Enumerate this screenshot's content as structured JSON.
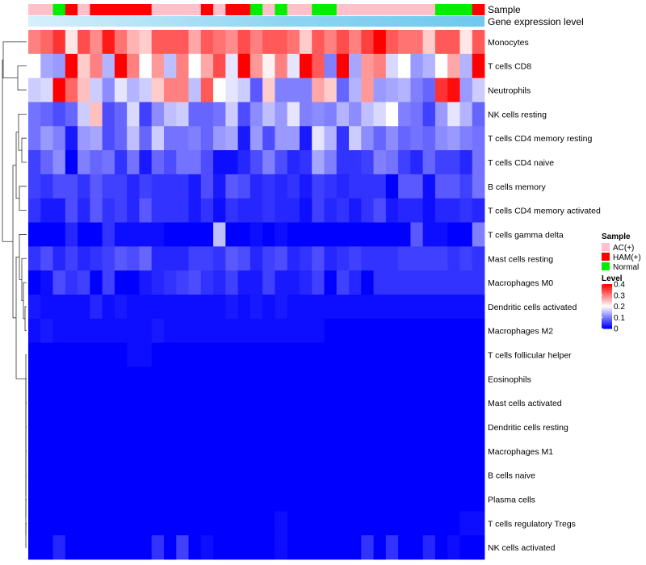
{
  "chart_data": {
    "type": "heatmap",
    "title": "",
    "annotation_tracks": [
      {
        "name": "Sample",
        "label": "Sample"
      },
      {
        "name": "Gene expression level",
        "label": "Gene expression level"
      }
    ],
    "sample_groups": [
      "AC",
      "AC",
      "N",
      "H",
      "AC",
      "H",
      "H",
      "H",
      "H",
      "H",
      "AC",
      "AC",
      "AC",
      "AC",
      "H",
      "AC",
      "H",
      "H",
      "N",
      "AC",
      "N",
      "AC",
      "AC",
      "N",
      "N",
      "AC",
      "AC",
      "AC",
      "AC",
      "AC",
      "AC",
      "AC",
      "AC",
      "N",
      "N",
      "N",
      "H"
    ],
    "rows": [
      "Monocytes",
      "T cells CD8",
      "Neutrophils",
      "NK cells resting",
      "T cells CD4 memory resting",
      "T cells CD4 naive",
      "B cells memory",
      "T cells CD4 memory activated",
      "T cells gamma delta",
      "Mast cells resting",
      "Macrophages M0",
      "Dendritic cells activated",
      "Macrophages M2",
      "T cells follicular helper",
      "Eosinophils",
      "Mast cells activated",
      "Dendritic cells resting",
      "Macrophages M1",
      "B cells naive",
      "Plasma cells",
      "T cells regulatory  Tregs",
      "NK cells activated"
    ],
    "values": [
      [
        0.3,
        0.32,
        0.36,
        0.22,
        0.34,
        0.29,
        0.38,
        0.31,
        0.26,
        0.24,
        0.33,
        0.33,
        0.33,
        0.27,
        0.33,
        0.31,
        0.29,
        0.34,
        0.3,
        0.33,
        0.33,
        0.31,
        0.24,
        0.33,
        0.3,
        0.34,
        0.3,
        0.35,
        0.41,
        0.33,
        0.31,
        0.31,
        0.24,
        0.33,
        0.33,
        0.22,
        0.33
      ],
      [
        0.2,
        0.13,
        0.12,
        0.4,
        0.24,
        0.3,
        0.14,
        0.4,
        0.3,
        0.2,
        0.28,
        0.15,
        0.3,
        0.2,
        0.27,
        0.34,
        0.18,
        0.41,
        0.28,
        0.21,
        0.3,
        0.18,
        0.41,
        0.33,
        0.1,
        0.41,
        0.13,
        0.28,
        0.3,
        0.17,
        0.2,
        0.12,
        0.14,
        0.2,
        0.27,
        0.14,
        0.4
      ],
      [
        0.16,
        0.17,
        0.4,
        0.32,
        0.25,
        0.16,
        0.11,
        0.18,
        0.14,
        0.16,
        0.24,
        0.3,
        0.3,
        0.15,
        0.33,
        0.2,
        0.18,
        0.16,
        0.07,
        0.24,
        0.1,
        0.1,
        0.1,
        0.27,
        0.24,
        0.08,
        0.14,
        0.28,
        0.12,
        0.13,
        0.14,
        0.1,
        0.08,
        0.36,
        0.39,
        0.12,
        0.16
      ],
      [
        0.09,
        0.08,
        0.06,
        0.08,
        0.16,
        0.25,
        0.06,
        0.08,
        0.17,
        0.05,
        0.11,
        0.15,
        0.16,
        0.08,
        0.08,
        0.09,
        0.16,
        0.06,
        0.11,
        0.15,
        0.12,
        0.18,
        0.1,
        0.11,
        0.1,
        0.14,
        0.11,
        0.15,
        0.17,
        0.2,
        0.1,
        0.09,
        0.05,
        0.12,
        0.18,
        0.14,
        0.08
      ],
      [
        0.09,
        0.12,
        0.1,
        0.02,
        0.12,
        0.13,
        0.06,
        0.08,
        0.15,
        0.08,
        0.16,
        0.09,
        0.09,
        0.1,
        0.08,
        0.12,
        0.13,
        0.02,
        0.12,
        0.06,
        0.12,
        0.12,
        0.02,
        0.18,
        0.14,
        0.04,
        0.16,
        0.11,
        0.08,
        0.11,
        0.08,
        0.09,
        0.08,
        0.11,
        0.12,
        0.1,
        0.09
      ],
      [
        0.05,
        0.08,
        0.11,
        0.0,
        0.1,
        0.08,
        0.09,
        0.04,
        0.09,
        0.02,
        0.08,
        0.06,
        0.09,
        0.09,
        0.06,
        0.01,
        0.01,
        0.03,
        0.06,
        0.1,
        0.06,
        0.03,
        0.04,
        0.13,
        0.1,
        0.04,
        0.04,
        0.05,
        0.1,
        0.09,
        0.05,
        0.03,
        0.08,
        0.05,
        0.05,
        0.03,
        0.09
      ],
      [
        0.05,
        0.04,
        0.06,
        0.06,
        0.04,
        0.07,
        0.05,
        0.05,
        0.03,
        0.05,
        0.04,
        0.04,
        0.04,
        0.02,
        0.06,
        0.02,
        0.07,
        0.06,
        0.03,
        0.04,
        0.03,
        0.04,
        0.02,
        0.05,
        0.04,
        0.03,
        0.04,
        0.04,
        0.04,
        0.0,
        0.07,
        0.07,
        0.01,
        0.07,
        0.07,
        0.05,
        0.09
      ],
      [
        0.04,
        0.02,
        0.02,
        0.06,
        0.03,
        0.07,
        0.04,
        0.05,
        0.03,
        0.07,
        0.04,
        0.04,
        0.04,
        0.02,
        0.04,
        0.01,
        0.04,
        0.03,
        0.03,
        0.04,
        0.03,
        0.03,
        0.01,
        0.05,
        0.03,
        0.04,
        0.02,
        0.04,
        0.06,
        0.02,
        0.03,
        0.03,
        0.01,
        0.03,
        0.03,
        0.04,
        0.03
      ],
      [
        0.0,
        0.0,
        0.0,
        0.03,
        0.0,
        0.0,
        0.04,
        0.01,
        0.01,
        0.01,
        0.01,
        0.0,
        0.0,
        0.0,
        0.0,
        0.15,
        0.0,
        0.0,
        0.01,
        0.0,
        0.01,
        0.0,
        0.0,
        0.0,
        0.0,
        0.0,
        0.0,
        0.0,
        0.0,
        0.0,
        0.0,
        0.07,
        0.01,
        0.01,
        0.0,
        0.0,
        0.1
      ],
      [
        0.04,
        0.06,
        0.03,
        0.05,
        0.03,
        0.04,
        0.05,
        0.07,
        0.06,
        0.08,
        0.03,
        0.03,
        0.03,
        0.05,
        0.05,
        0.04,
        0.07,
        0.06,
        0.03,
        0.05,
        0.06,
        0.03,
        0.04,
        0.06,
        0.03,
        0.04,
        0.05,
        0.04,
        0.04,
        0.04,
        0.05,
        0.05,
        0.05,
        0.05,
        0.04,
        0.05,
        0.04
      ],
      [
        0.0,
        0.01,
        0.06,
        0.04,
        0.05,
        0.0,
        0.05,
        0.0,
        0.0,
        0.02,
        0.03,
        0.04,
        0.05,
        0.06,
        0.04,
        0.03,
        0.05,
        0.02,
        0.02,
        0.05,
        0.02,
        0.02,
        0.03,
        0.05,
        0.0,
        0.05,
        0.03,
        0.0,
        0.04,
        0.04,
        0.04,
        0.04,
        0.04,
        0.04,
        0.04,
        0.04,
        0.04
      ],
      [
        0.02,
        0.01,
        0.01,
        0.01,
        0.01,
        0.03,
        0.01,
        0.02,
        0.01,
        0.01,
        0.01,
        0.01,
        0.01,
        0.01,
        0.01,
        0.01,
        0.02,
        0.01,
        0.02,
        0.01,
        0.02,
        0.01,
        0.01,
        0.01,
        0.01,
        0.01,
        0.01,
        0.01,
        0.01,
        0.01,
        0.01,
        0.01,
        0.01,
        0.01,
        0.01,
        0.01,
        0.01
      ],
      [
        0.01,
        0.02,
        0.01,
        0.01,
        0.01,
        0.01,
        0.01,
        0.01,
        0.01,
        0.01,
        0.02,
        0.01,
        0.01,
        0.01,
        0.01,
        0.01,
        0.01,
        0.01,
        0.01,
        0.01,
        0.01,
        0.01,
        0.01,
        0.01,
        0.0,
        0.0,
        0.0,
        0.0,
        0.0,
        0.0,
        0.0,
        0.0,
        0.0,
        0.0,
        0.0,
        0.0,
        0.0
      ],
      [
        0.0,
        0.0,
        0.0,
        0.0,
        0.0,
        0.0,
        0.0,
        0.0,
        0.01,
        0.01,
        0.0,
        0.0,
        0.0,
        0.0,
        0.0,
        0.0,
        0.0,
        0.0,
        0.0,
        0.0,
        0.0,
        0.0,
        0.0,
        0.0,
        0.0,
        0.0,
        0.0,
        0.0,
        0.0,
        0.0,
        0.0,
        0.0,
        0.0,
        0.0,
        0.0,
        0.0,
        0.0
      ],
      [
        0.0,
        0.0,
        0.0,
        0.0,
        0.0,
        0.0,
        0.0,
        0.0,
        0.0,
        0.0,
        0.0,
        0.0,
        0.0,
        0.0,
        0.0,
        0.0,
        0.0,
        0.0,
        0.0,
        0.0,
        0.0,
        0.0,
        0.0,
        0.0,
        0.0,
        0.0,
        0.0,
        0.0,
        0.0,
        0.0,
        0.0,
        0.0,
        0.0,
        0.0,
        0.0,
        0.0,
        0.0
      ],
      [
        0.0,
        0.0,
        0.0,
        0.0,
        0.0,
        0.0,
        0.0,
        0.0,
        0.0,
        0.0,
        0.0,
        0.0,
        0.0,
        0.0,
        0.0,
        0.0,
        0.0,
        0.0,
        0.0,
        0.0,
        0.0,
        0.0,
        0.0,
        0.0,
        0.0,
        0.0,
        0.0,
        0.0,
        0.0,
        0.0,
        0.0,
        0.0,
        0.0,
        0.0,
        0.0,
        0.0,
        0.0
      ],
      [
        0.0,
        0.0,
        0.0,
        0.0,
        0.0,
        0.0,
        0.0,
        0.0,
        0.0,
        0.0,
        0.0,
        0.0,
        0.0,
        0.0,
        0.0,
        0.0,
        0.0,
        0.0,
        0.0,
        0.0,
        0.0,
        0.0,
        0.0,
        0.0,
        0.0,
        0.0,
        0.0,
        0.0,
        0.0,
        0.0,
        0.0,
        0.0,
        0.0,
        0.0,
        0.0,
        0.0,
        0.0
      ],
      [
        0.0,
        0.0,
        0.0,
        0.0,
        0.0,
        0.0,
        0.0,
        0.0,
        0.0,
        0.0,
        0.0,
        0.0,
        0.0,
        0.0,
        0.0,
        0.0,
        0.0,
        0.0,
        0.0,
        0.0,
        0.0,
        0.0,
        0.0,
        0.0,
        0.0,
        0.0,
        0.0,
        0.0,
        0.0,
        0.0,
        0.0,
        0.0,
        0.0,
        0.0,
        0.0,
        0.0,
        0.0
      ],
      [
        0.0,
        0.0,
        0.0,
        0.0,
        0.0,
        0.0,
        0.0,
        0.0,
        0.0,
        0.0,
        0.0,
        0.0,
        0.0,
        0.0,
        0.0,
        0.0,
        0.0,
        0.0,
        0.0,
        0.0,
        0.0,
        0.0,
        0.0,
        0.0,
        0.0,
        0.0,
        0.0,
        0.0,
        0.0,
        0.0,
        0.0,
        0.0,
        0.0,
        0.0,
        0.0,
        0.0,
        0.0
      ],
      [
        0.0,
        0.0,
        0.0,
        0.0,
        0.0,
        0.0,
        0.0,
        0.0,
        0.0,
        0.0,
        0.0,
        0.0,
        0.0,
        0.0,
        0.0,
        0.0,
        0.0,
        0.0,
        0.0,
        0.0,
        0.0,
        0.0,
        0.0,
        0.0,
        0.0,
        0.0,
        0.0,
        0.0,
        0.0,
        0.0,
        0.0,
        0.0,
        0.0,
        0.0,
        0.0,
        0.0,
        0.0
      ],
      [
        0.0,
        0.0,
        0.0,
        0.0,
        0.0,
        0.0,
        0.0,
        0.0,
        0.0,
        0.0,
        0.0,
        0.0,
        0.0,
        0.0,
        0.0,
        0.0,
        0.0,
        0.0,
        0.0,
        0.0,
        0.01,
        0.0,
        0.0,
        0.0,
        0.0,
        0.0,
        0.0,
        0.0,
        0.0,
        0.0,
        0.0,
        0.0,
        0.0,
        0.0,
        0.0,
        0.01,
        0.01
      ],
      [
        0.0,
        0.0,
        0.03,
        0.0,
        0.0,
        0.0,
        0.0,
        0.0,
        0.0,
        0.0,
        0.04,
        0.0,
        0.05,
        0.0,
        0.01,
        0.0,
        0.0,
        0.0,
        0.0,
        0.0,
        0.01,
        0.0,
        0.0,
        0.0,
        0.0,
        0.0,
        0.0,
        0.04,
        0.0,
        0.04,
        0.0,
        0.0,
        0.03,
        0.0,
        0.01,
        0.0,
        0.0
      ]
    ],
    "color_scale": {
      "min": 0,
      "mid": 0.2,
      "max": 0.4,
      "low": "#0000ff",
      "midcolor": "#ffffff",
      "high": "#ff0000"
    },
    "legend": {
      "sample_title": "Sample",
      "sample_entries": [
        {
          "key": "AC",
          "label": "AC(+)",
          "color": "#ffc0cb"
        },
        {
          "key": "H",
          "label": "HAM(+)",
          "color": "#ff0000"
        },
        {
          "key": "N",
          "label": "Normal",
          "color": "#00ee00"
        }
      ],
      "level_title": "Level",
      "level_ticks": [
        "0.4",
        "0.3",
        "0.2",
        "0.1",
        "0"
      ],
      "level_tick_values": [
        0.4,
        0.3,
        0.2,
        0.1,
        0
      ]
    },
    "gene_expression_bar": {
      "left_color": "#d6f0fb",
      "right_color": "#6ec8ee"
    }
  }
}
